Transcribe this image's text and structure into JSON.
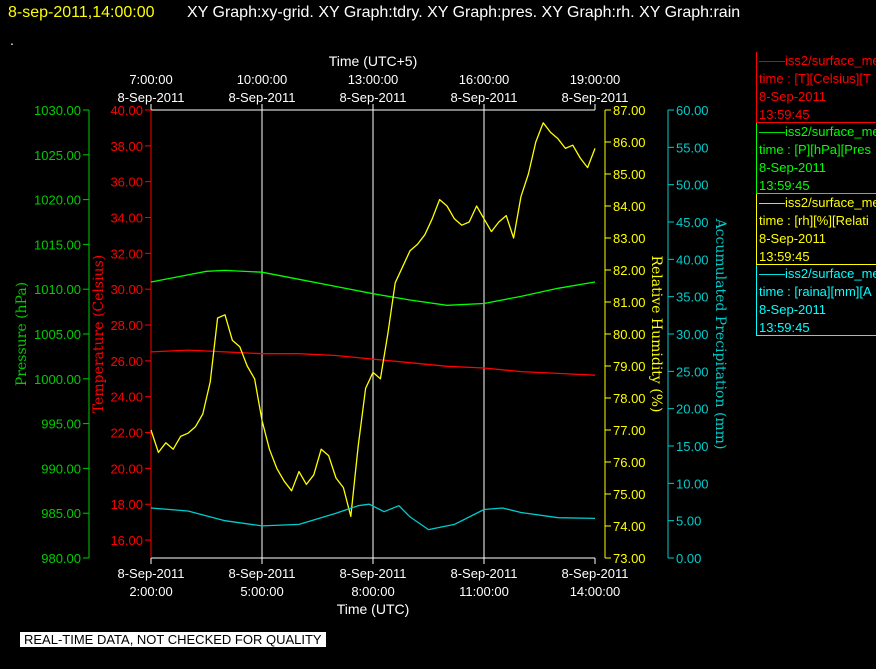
{
  "header": {
    "timestamp": "8-sep-2011,14:00:00",
    "graphs": "XY Graph:xy-grid.  XY Graph:tdry.  XY Graph:pres.  XY Graph:rh.  XY Graph:rain"
  },
  "dot": ".",
  "legend": [
    {
      "name": "——iss2/surface_me",
      "field": "time : [T][Celsius][T",
      "date": "8-Sep-2011",
      "time": "13:59:45",
      "color": "#ff0000"
    },
    {
      "name": "——iss2/surface_me",
      "field": "time : [P][hPa][Pres",
      "date": "8-Sep-2011",
      "time": "13:59:45",
      "color": "#00ff00"
    },
    {
      "name": "——iss2/surface_me",
      "field": "time : [rh][%][Relati",
      "date": "8-Sep-2011",
      "time": "13:59:45",
      "color": "#ffff00"
    },
    {
      "name": "——iss2/surface_me",
      "field": "time : [raina][mm][A",
      "date": "8-Sep-2011",
      "time": "13:59:45",
      "color": "#00ffff"
    }
  ],
  "footer": "REAL-TIME DATA, NOT CHECKED FOR QUALITY",
  "chart_data": {
    "type": "line",
    "x_bottom": {
      "label": "Time (UTC)",
      "ticks": [
        {
          "t": 2,
          "date": "8-Sep-2011",
          "time": "2:00:00"
        },
        {
          "t": 5,
          "date": "8-Sep-2011",
          "time": "5:00:00"
        },
        {
          "t": 8,
          "date": "8-Sep-2011",
          "time": "8:00:00"
        },
        {
          "t": 11,
          "date": "8-Sep-2011",
          "time": "11:00:00"
        },
        {
          "t": 14,
          "date": "8-Sep-2011",
          "time": "14:00:00"
        }
      ]
    },
    "x_top": {
      "label": "Time (UTC+5)",
      "ticks": [
        {
          "t": 2,
          "time": "7:00:00",
          "date": "8-Sep-2011"
        },
        {
          "t": 5,
          "time": "10:00:00",
          "date": "8-Sep-2011"
        },
        {
          "t": 8,
          "time": "13:00:00",
          "date": "8-Sep-2011"
        },
        {
          "t": 11,
          "time": "16:00:00",
          "date": "8-Sep-2011"
        },
        {
          "t": 14,
          "time": "19:00:00",
          "date": "8-Sep-2011"
        }
      ]
    },
    "xlim": [
      2,
      14
    ],
    "grid_x": [
      5,
      8,
      11
    ],
    "y_axes": [
      {
        "id": "pres",
        "label": "Pressure (hPa)",
        "color": "#00cc00",
        "ylim": [
          980,
          1030
        ],
        "ticks": [
          "980.00",
          "985.00",
          "990.00",
          "995.00",
          "1000.00",
          "1005.00",
          "1010.00",
          "1015.00",
          "1020.00",
          "1025.00",
          "1030.00"
        ]
      },
      {
        "id": "temp",
        "label": "Temperature (Celsius)",
        "color": "#ff0000",
        "ylim": [
          15,
          40
        ],
        "ticks": [
          "16.00",
          "18.00",
          "20.00",
          "22.00",
          "24.00",
          "26.00",
          "28.00",
          "30.00",
          "32.00",
          "34.00",
          "36.00",
          "38.00",
          "40.00"
        ]
      },
      {
        "id": "rh",
        "label": "Relative Humidity (%)",
        "color": "#ffff00",
        "ylim": [
          73,
          87
        ],
        "ticks": [
          "73.00",
          "74.00",
          "75.00",
          "76.00",
          "77.00",
          "78.00",
          "79.00",
          "80.00",
          "81.00",
          "82.00",
          "83.00",
          "84.00",
          "85.00",
          "86.00",
          "87.00"
        ]
      },
      {
        "id": "rain",
        "label": "Accumulated Precipitation (mm)",
        "color": "#00cccc",
        "ylim": [
          0,
          60
        ],
        "ticks": [
          "0.00",
          "5.00",
          "10.00",
          "15.00",
          "20.00",
          "25.00",
          "30.00",
          "35.00",
          "40.00",
          "45.00",
          "50.00",
          "55.00",
          "60.00"
        ]
      }
    ],
    "series": [
      {
        "id": "pres",
        "axis": "pres",
        "color": "#00ff00",
        "x": [
          2,
          3,
          3.5,
          4,
          5,
          6,
          7,
          8,
          9,
          10,
          11,
          12,
          13,
          14
        ],
        "y": [
          1010.8,
          1011.6,
          1012,
          1012.1,
          1011.9,
          1011.1,
          1010.3,
          1009.5,
          1008.8,
          1008.2,
          1008.4,
          1009.2,
          1010.1,
          1010.8
        ]
      },
      {
        "id": "temp",
        "axis": "temp",
        "color": "#ff0000",
        "x": [
          2,
          3,
          4,
          5,
          6,
          7,
          8,
          9,
          10,
          11,
          12,
          13,
          14
        ],
        "y": [
          26.5,
          26.6,
          26.5,
          26.4,
          26.4,
          26.3,
          26.1,
          25.9,
          25.7,
          25.6,
          25.4,
          25.3,
          25.2
        ]
      },
      {
        "id": "rh",
        "axis": "rh",
        "color": "#ffff00",
        "x": [
          2,
          2.2,
          2.4,
          2.6,
          2.8,
          3,
          3.2,
          3.4,
          3.6,
          3.8,
          4,
          4.2,
          4.4,
          4.6,
          4.8,
          5,
          5.2,
          5.4,
          5.6,
          5.8,
          6,
          6.2,
          6.4,
          6.6,
          6.8,
          7,
          7.2,
          7.4,
          7.6,
          7.8,
          8,
          8.2,
          8.4,
          8.6,
          8.8,
          9,
          9.2,
          9.4,
          9.6,
          9.8,
          10,
          10.2,
          10.4,
          10.6,
          10.8,
          11,
          11.2,
          11.4,
          11.6,
          11.8,
          12,
          12.2,
          12.4,
          12.6,
          12.8,
          13,
          13.2,
          13.4,
          13.6,
          13.8,
          14
        ],
        "y": [
          77,
          76.3,
          76.6,
          76.4,
          76.8,
          76.9,
          77.1,
          77.5,
          78.5,
          80.5,
          80.6,
          79.8,
          79.6,
          79.0,
          78.6,
          77.3,
          76.4,
          75.8,
          75.4,
          75.1,
          75.7,
          75.3,
          75.6,
          76.4,
          76.2,
          75.5,
          75.2,
          74.3,
          76.5,
          78.3,
          78.8,
          78.6,
          80.0,
          81.6,
          82.1,
          82.6,
          82.8,
          83.1,
          83.6,
          84.2,
          84.0,
          83.6,
          83.4,
          83.5,
          84.0,
          83.6,
          83.2,
          83.5,
          83.7,
          83.0,
          84.3,
          85.0,
          86.0,
          86.6,
          86.3,
          86.1,
          85.8,
          85.9,
          85.5,
          85.2,
          85.8
        ]
      },
      {
        "id": "rain",
        "axis": "rain",
        "color": "#00cccc",
        "x": [
          2,
          3,
          4,
          5,
          6,
          7,
          7.6,
          7.9,
          8.3,
          8.7,
          9.0,
          9.5,
          10.2,
          11,
          11.5,
          12,
          13,
          14
        ],
        "y": [
          6.7,
          6.3,
          5.0,
          4.3,
          4.5,
          6.0,
          7.0,
          7.2,
          6.2,
          7.0,
          5.5,
          3.8,
          4.5,
          6.5,
          6.7,
          6.1,
          5.4,
          5.3
        ]
      }
    ],
    "grid": true,
    "legend": "right"
  }
}
